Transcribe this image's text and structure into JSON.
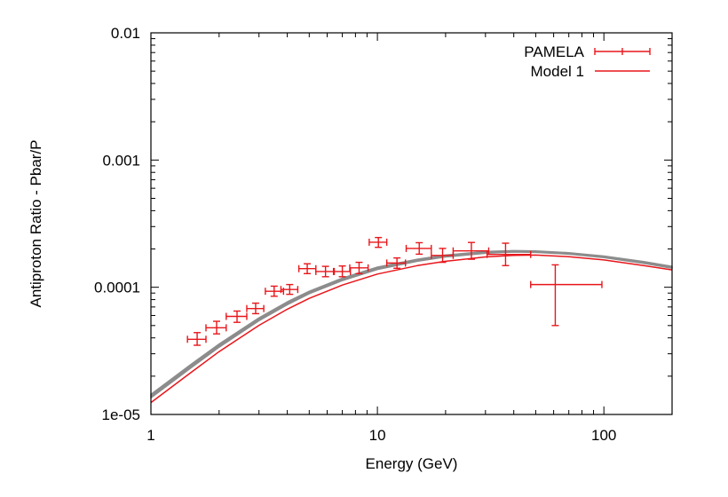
{
  "chart_data": {
    "type": "line",
    "x_scale": "log",
    "y_scale": "log",
    "xlim": [
      1,
      200
    ],
    "ylim": [
      1e-05,
      0.01
    ],
    "xlabel": "Energy (GeV)",
    "ylabel": "Antiproton Ratio - Pbar/P",
    "x_ticks": [
      {
        "value": 1,
        "label": "1"
      },
      {
        "value": 10,
        "label": "10"
      },
      {
        "value": 100,
        "label": "100"
      }
    ],
    "y_ticks": [
      {
        "value": 1e-05,
        "label": "1e-05"
      },
      {
        "value": 0.0001,
        "label": "0.0001"
      },
      {
        "value": 0.001,
        "label": "0.001"
      },
      {
        "value": 0.01,
        "label": "0.01"
      }
    ],
    "legend_position": "top-right",
    "grid": false,
    "series": [
      {
        "name": "PAMELA",
        "kind": "errorbar",
        "color": "#e8161b",
        "points": [
          {
            "x": 1.6,
            "y": 3.9e-05,
            "xlo": 1.45,
            "xhi": 1.75,
            "ylo": 3.5e-05,
            "yhi": 4.4e-05
          },
          {
            "x": 1.95,
            "y": 4.8e-05,
            "xlo": 1.75,
            "xhi": 2.15,
            "ylo": 4.3e-05,
            "yhi": 5.4e-05
          },
          {
            "x": 2.4,
            "y": 5.9e-05,
            "xlo": 2.15,
            "xhi": 2.65,
            "ylo": 5.3e-05,
            "yhi": 6.5e-05
          },
          {
            "x": 2.9,
            "y": 6.8e-05,
            "xlo": 2.65,
            "xhi": 3.15,
            "ylo": 6.2e-05,
            "yhi": 7.5e-05
          },
          {
            "x": 3.5,
            "y": 9.3e-05,
            "xlo": 3.2,
            "xhi": 3.85,
            "ylo": 8.5e-05,
            "yhi": 0.000102
          },
          {
            "x": 4.1,
            "y": 9.6e-05,
            "xlo": 3.75,
            "xhi": 4.45,
            "ylo": 8.8e-05,
            "yhi": 0.000105
          },
          {
            "x": 4.9,
            "y": 0.00014,
            "xlo": 4.5,
            "xhi": 5.35,
            "ylo": 0.000128,
            "yhi": 0.000153
          },
          {
            "x": 5.9,
            "y": 0.000133,
            "xlo": 5.35,
            "xhi": 6.45,
            "ylo": 0.000121,
            "yhi": 0.000146
          },
          {
            "x": 7.0,
            "y": 0.000133,
            "xlo": 6.4,
            "xhi": 7.6,
            "ylo": 0.000121,
            "yhi": 0.000147
          },
          {
            "x": 8.3,
            "y": 0.000142,
            "xlo": 7.55,
            "xhi": 9.1,
            "ylo": 0.000128,
            "yhi": 0.000157
          },
          {
            "x": 10.1,
            "y": 0.000226,
            "xlo": 9.2,
            "xhi": 11.0,
            "ylo": 0.000206,
            "yhi": 0.000246
          },
          {
            "x": 12.2,
            "y": 0.000155,
            "xlo": 11.0,
            "xhi": 13.3,
            "ylo": 0.000141,
            "yhi": 0.00017
          },
          {
            "x": 15.3,
            "y": 0.000202,
            "xlo": 13.4,
            "xhi": 17.3,
            "ylo": 0.000182,
            "yhi": 0.000224
          },
          {
            "x": 19.4,
            "y": 0.000178,
            "xlo": 17.3,
            "xhi": 21.6,
            "ylo": 0.000157,
            "yhi": 0.000202
          },
          {
            "x": 26.0,
            "y": 0.000193,
            "xlo": 21.6,
            "xhi": 31.0,
            "ylo": 0.000166,
            "yhi": 0.000225
          },
          {
            "x": 36.8,
            "y": 0.000181,
            "xlo": 30.5,
            "xhi": 47.5,
            "ylo": 0.000148,
            "yhi": 0.000222
          },
          {
            "x": 61.0,
            "y": 0.000105,
            "xlo": 47.5,
            "xhi": 98.0,
            "ylo": 5e-05,
            "yhi": 0.00015
          }
        ]
      },
      {
        "name": "Model 1",
        "kind": "line",
        "color": "#e8161b",
        "x": [
          1,
          1.5,
          2,
          3,
          4,
          5,
          7,
          10,
          15,
          20,
          30,
          40,
          50,
          70,
          100,
          150,
          200
        ],
        "y": [
          1.24e-05,
          2.13e-05,
          3.12e-05,
          5.02e-05,
          6.72e-05,
          8.17e-05,
          0.000104,
          0.000127,
          0.000148,
          0.00016,
          0.000173,
          0.000178,
          0.000179,
          0.000174,
          0.000164,
          0.000148,
          0.000137
        ]
      },
      {
        "kind": "band",
        "color": "#8c8c8c",
        "x": [
          1,
          1.5,
          2,
          3,
          4,
          5,
          7,
          10,
          15,
          20,
          30,
          40,
          50,
          70,
          100,
          150,
          200
        ],
        "y_low": [
          1.35e-05,
          2.32e-05,
          3.38e-05,
          5.45e-05,
          7.3e-05,
          8.9e-05,
          0.000113,
          0.000138,
          0.00016,
          0.000173,
          0.000185,
          0.000189,
          0.000188,
          0.000182,
          0.000171,
          0.000154,
          0.000141
        ],
        "y_high": [
          1.44e-05,
          2.47e-05,
          3.58e-05,
          5.75e-05,
          7.68e-05,
          9.3e-05,
          0.000118,
          0.000144,
          0.000166,
          0.000179,
          0.000191,
          0.000194,
          0.000193,
          0.000187,
          0.000176,
          0.000159,
          0.000146
        ]
      }
    ]
  }
}
